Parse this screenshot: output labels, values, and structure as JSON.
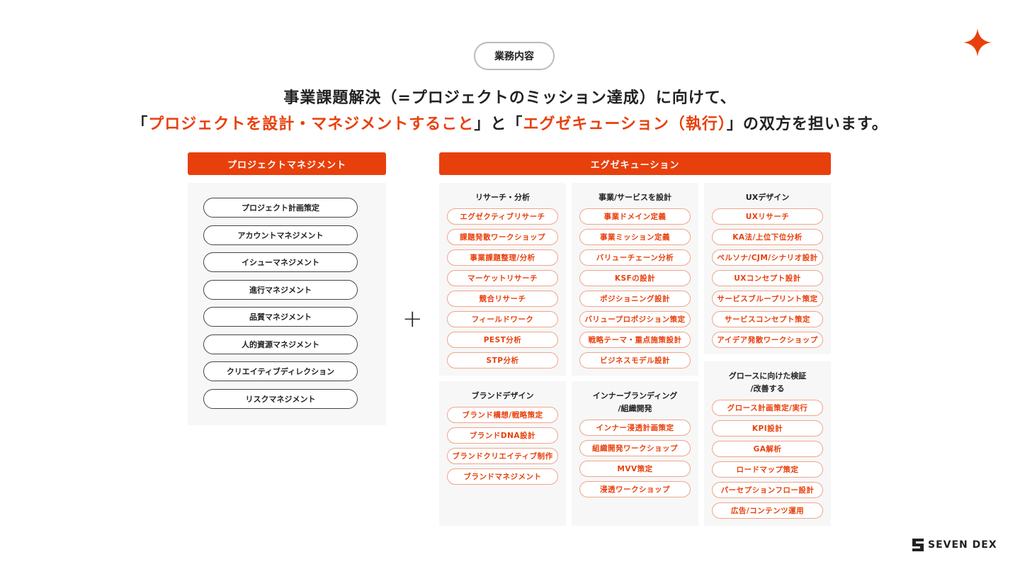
{
  "tag": "業務内容",
  "headline": {
    "line1": "事業課題解決（=プロジェクトのミッション達成）に向けて、",
    "line2_parts": [
      "「",
      "プロジェクトを設計・マネジメントすること",
      "」と「",
      "エグゼキューション（執行）",
      "」の双方を担います。"
    ]
  },
  "left": {
    "title": "プロジェクトマネジメント",
    "items": [
      "プロジェクト計画策定",
      "アカウントマネジメント",
      "イシューマネジメント",
      "進行マネジメント",
      "品質マネジメント",
      "人的資源マネジメント",
      "クリエイティブディレクション",
      "リスクマネジメント"
    ]
  },
  "plus": "+",
  "right": {
    "title": "エグゼキューション",
    "groups": [
      {
        "title": "リサーチ・分析",
        "items": [
          "エグゼクティブリサーチ",
          "課題発散ワークショップ",
          "事業課題整理/分析",
          "マーケットリサーチ",
          "競合リサーチ",
          "フィールドワーク",
          "PEST分析",
          "STP分析"
        ]
      },
      {
        "title": "事業/サービスを設計",
        "items": [
          "事業ドメイン定義",
          "事業ミッション定義",
          "バリューチェーン分析",
          "KSFの設計",
          "ポジショニング設計",
          "バリュープロポジション策定",
          "戦略テーマ・重点施策設計",
          "ビジネスモデル設計"
        ]
      },
      {
        "title": "UXデザイン",
        "items": [
          "UXリサーチ",
          "KA法/上位下位分析",
          "ペルソナ/CJM/シナリオ設計",
          "UXコンセプト設計",
          "サービスブループリント策定",
          "サービスコンセプト策定",
          "アイデア発散ワークショップ"
        ]
      },
      {
        "title": "ブランドデザイン",
        "items": [
          "ブランド構想/戦略策定",
          "ブランドDNA設計",
          "ブランドクリエイティブ制作",
          "ブランドマネジメント"
        ]
      },
      {
        "title": "インナーブランディング\n/組織開発",
        "items": [
          "インナー浸透計画策定",
          "組織開発ワークショップ",
          "MVV策定",
          "浸透ワークショップ"
        ]
      },
      {
        "title": "グロースに向けた検証\n/改善する",
        "items": [
          "グロース計画策定/実行",
          "KPI設計",
          "GA解析",
          "ロードマップ策定",
          "パーセプションフロー設計",
          "広告/コンテンツ運用"
        ]
      }
    ]
  },
  "logo": "SEVEN DEX",
  "colors": {
    "accent": "#e8400c"
  }
}
